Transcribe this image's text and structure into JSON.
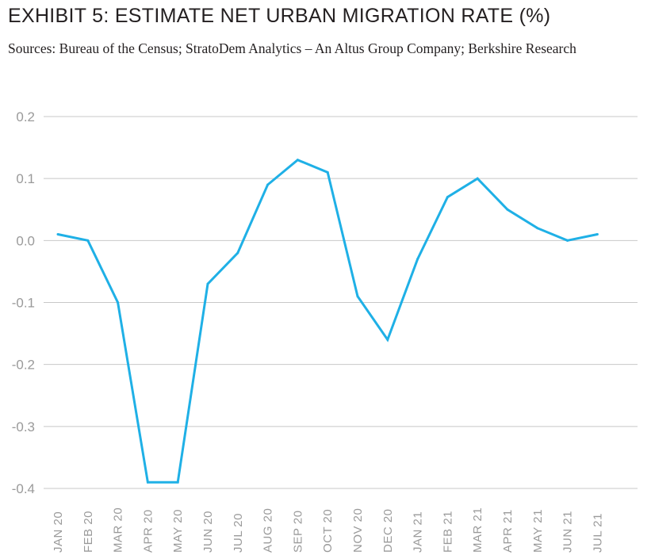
{
  "chart_data": {
    "type": "line",
    "title": "EXHIBIT 5: ESTIMATE NET URBAN MIGRATION RATE (%)",
    "subtitle": "Sources: Bureau of the Census; StratoDem Analytics – An Altus Group Company; Berkshire Research",
    "xlabel": "",
    "ylabel": "",
    "categories": [
      "JAN 20",
      "FEB 20",
      "MAR 20",
      "APR 20",
      "MAY 20",
      "JUN 20",
      "JUL 20",
      "AUG 20",
      "SEP 20",
      "OCT 20",
      "NOV 20",
      "DEC 20",
      "JAN 21",
      "FEB 21",
      "MAR 21",
      "APR 21",
      "MAY 21",
      "JUN 21",
      "JUL 21"
    ],
    "yticks": [
      0.2,
      0.1,
      0.0,
      -0.1,
      -0.2,
      -0.3,
      -0.4
    ],
    "ytick_labels": [
      "0.2",
      "0.1",
      "0.0",
      "-0.1",
      "-0.2",
      "-0.3",
      "-0.4"
    ],
    "ylim": [
      -0.4,
      0.2
    ],
    "grid": true,
    "legend": "none",
    "line_color": "#1fb0e6",
    "grid_color": "#c8c8c8",
    "series": [
      {
        "values": [
          0.01,
          0.0,
          -0.1,
          -0.39,
          -0.39,
          -0.07,
          -0.02,
          0.09,
          0.13,
          0.11,
          -0.09,
          -0.16,
          -0.03,
          0.07,
          0.1,
          0.05,
          0.02,
          0.0,
          0.01
        ]
      }
    ]
  }
}
